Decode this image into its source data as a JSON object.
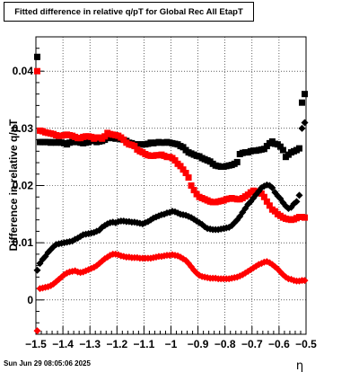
{
  "title": "Fitted difference in relative q/pT for Global Rec All EtapT",
  "footer": "Sun Jun 29 08:05:06 2025",
  "chart_data": {
    "type": "scatter",
    "title": "Fitted difference in relative q/pT for Global Rec All EtapT",
    "xlabel": "η",
    "ylabel": "Difference in relative q/pT",
    "xlim": [
      -1.5,
      -0.5
    ],
    "ylim": [
      -0.006,
      0.046
    ],
    "grid": true,
    "x_ticks": [
      "−1.5",
      "−1.4",
      "−1.3",
      "−1.2",
      "−1.1",
      "−1",
      "−0.9",
      "−0.8",
      "−0.7",
      "−0.6",
      "−0.5"
    ],
    "y_ticks": [
      "0",
      "0.01",
      "0.02",
      "0.03",
      "0.04"
    ],
    "series": [
      {
        "color": "#000000",
        "marker": "square",
        "x": [
          -1.495,
          -1.485,
          -1.475,
          -1.465,
          -1.455,
          -1.445,
          -1.435,
          -1.425,
          -1.415,
          -1.405,
          -1.395,
          -1.385,
          -1.375,
          -1.365,
          -1.355,
          -1.345,
          -1.335,
          -1.325,
          -1.315,
          -1.305,
          -1.295,
          -1.285,
          -1.275,
          -1.265,
          -1.255,
          -1.245,
          -1.235,
          -1.225,
          -1.215,
          -1.205,
          -1.195,
          -1.185,
          -1.175,
          -1.165,
          -1.155,
          -1.145,
          -1.135,
          -1.125,
          -1.115,
          -1.105,
          -1.095,
          -1.085,
          -1.075,
          -1.065,
          -1.055,
          -1.045,
          -1.035,
          -1.025,
          -1.015,
          -1.005,
          -0.995,
          -0.985,
          -0.975,
          -0.965,
          -0.955,
          -0.945,
          -0.935,
          -0.925,
          -0.915,
          -0.905,
          -0.895,
          -0.885,
          -0.875,
          -0.865,
          -0.855,
          -0.845,
          -0.835,
          -0.825,
          -0.815,
          -0.805,
          -0.795,
          -0.785,
          -0.775,
          -0.765,
          -0.755,
          -0.745,
          -0.735,
          -0.725,
          -0.715,
          -0.705,
          -0.695,
          -0.685,
          -0.675,
          -0.665,
          -0.655,
          -0.645,
          -0.635,
          -0.625,
          -0.615,
          -0.605,
          -0.595,
          -0.585,
          -0.575,
          -0.565,
          -0.555,
          -0.545,
          -0.535,
          -0.525,
          -0.515,
          -0.505
        ],
        "y": [
          0.0425,
          0.0276,
          0.0276,
          0.0276,
          0.0276,
          0.0275,
          0.0276,
          0.0275,
          0.0276,
          0.0275,
          0.0274,
          0.0272,
          0.0275,
          0.0276,
          0.0277,
          0.0276,
          0.0275,
          0.0274,
          0.0275,
          0.0276,
          0.0278,
          0.0279,
          0.0276,
          0.0277,
          0.0278,
          0.028,
          0.0283,
          0.0284,
          0.0283,
          0.0282,
          0.0283,
          0.0281,
          0.028,
          0.0278,
          0.0275,
          0.0274,
          0.0272,
          0.0272,
          0.0272,
          0.0272,
          0.0272,
          0.0273,
          0.0275,
          0.0274,
          0.0275,
          0.0276,
          0.0275,
          0.0275,
          0.0276,
          0.0275,
          0.0274,
          0.0273,
          0.0272,
          0.0269,
          0.0267,
          0.0262,
          0.0258,
          0.0256,
          0.0254,
          0.0252,
          0.0251,
          0.0248,
          0.0246,
          0.0244,
          0.0242,
          0.0238,
          0.0235,
          0.0234,
          0.0233,
          0.0233,
          0.0234,
          0.0235,
          0.0236,
          0.0238,
          0.0241,
          0.0255,
          0.0257,
          0.0258,
          0.0258,
          0.026,
          0.0261,
          0.0261,
          0.0262,
          0.0263,
          0.0264,
          0.0269,
          0.0274,
          0.0277,
          0.0273,
          0.0272,
          0.0268,
          0.0262,
          0.025,
          0.0254,
          0.0258,
          0.026,
          0.0262,
          0.0265,
          0.0345,
          0.036
        ]
      },
      {
        "color": "#ff0000",
        "marker": "square",
        "x": [
          -1.495,
          -1.485,
          -1.475,
          -1.465,
          -1.455,
          -1.445,
          -1.435,
          -1.425,
          -1.415,
          -1.405,
          -1.395,
          -1.385,
          -1.375,
          -1.365,
          -1.355,
          -1.345,
          -1.335,
          -1.325,
          -1.315,
          -1.305,
          -1.295,
          -1.285,
          -1.275,
          -1.265,
          -1.255,
          -1.245,
          -1.235,
          -1.225,
          -1.215,
          -1.205,
          -1.195,
          -1.185,
          -1.175,
          -1.165,
          -1.155,
          -1.145,
          -1.135,
          -1.125,
          -1.115,
          -1.105,
          -1.095,
          -1.085,
          -1.075,
          -1.065,
          -1.055,
          -1.045,
          -1.035,
          -1.025,
          -1.015,
          -1.005,
          -0.995,
          -0.985,
          -0.975,
          -0.965,
          -0.955,
          -0.945,
          -0.935,
          -0.925,
          -0.915,
          -0.905,
          -0.895,
          -0.885,
          -0.875,
          -0.865,
          -0.855,
          -0.845,
          -0.835,
          -0.825,
          -0.815,
          -0.805,
          -0.795,
          -0.785,
          -0.775,
          -0.765,
          -0.755,
          -0.745,
          -0.735,
          -0.725,
          -0.715,
          -0.705,
          -0.695,
          -0.685,
          -0.675,
          -0.665,
          -0.655,
          -0.645,
          -0.635,
          -0.625,
          -0.615,
          -0.605,
          -0.595,
          -0.585,
          -0.575,
          -0.565,
          -0.555,
          -0.545,
          -0.535,
          -0.525,
          -0.515,
          -0.505
        ],
        "y": [
          0.04,
          0.0296,
          0.0295,
          0.0293,
          0.0292,
          0.0291,
          0.029,
          0.0288,
          0.0287,
          0.0287,
          0.0288,
          0.0289,
          0.0288,
          0.0287,
          0.0285,
          0.0283,
          0.0283,
          0.0285,
          0.0286,
          0.0286,
          0.0285,
          0.0282,
          0.0284,
          0.0284,
          0.0282,
          0.0286,
          0.0292,
          0.029,
          0.0289,
          0.0288,
          0.0287,
          0.0284,
          0.028,
          0.0275,
          0.0272,
          0.0271,
          0.0269,
          0.0263,
          0.026,
          0.0258,
          0.0255,
          0.0253,
          0.0252,
          0.0252,
          0.0253,
          0.0253,
          0.0254,
          0.0252,
          0.025,
          0.025,
          0.0248,
          0.0244,
          0.0238,
          0.0234,
          0.0228,
          0.0222,
          0.0214,
          0.02,
          0.0192,
          0.0185,
          0.018,
          0.0178,
          0.0176,
          0.0174,
          0.0172,
          0.0171,
          0.0171,
          0.0172,
          0.0173,
          0.0174,
          0.0176,
          0.0177,
          0.0178,
          0.0177,
          0.0176,
          0.0176,
          0.0178,
          0.0181,
          0.0184,
          0.0188,
          0.0191,
          0.019,
          0.0188,
          0.0186,
          0.018,
          0.0172,
          0.0165,
          0.0158,
          0.0155,
          0.015,
          0.0147,
          0.0144,
          0.0142,
          0.0141,
          0.014,
          0.0141,
          0.0143,
          0.0145,
          0.0145,
          0.0144
        ]
      },
      {
        "color": "#000000",
        "marker": "circle",
        "x": [
          -1.495,
          -1.485,
          -1.475,
          -1.465,
          -1.455,
          -1.445,
          -1.435,
          -1.425,
          -1.415,
          -1.405,
          -1.395,
          -1.385,
          -1.375,
          -1.365,
          -1.355,
          -1.345,
          -1.335,
          -1.325,
          -1.315,
          -1.305,
          -1.295,
          -1.285,
          -1.275,
          -1.265,
          -1.255,
          -1.245,
          -1.235,
          -1.225,
          -1.215,
          -1.205,
          -1.195,
          -1.185,
          -1.175,
          -1.165,
          -1.155,
          -1.145,
          -1.135,
          -1.125,
          -1.115,
          -1.105,
          -1.095,
          -1.085,
          -1.075,
          -1.065,
          -1.055,
          -1.045,
          -1.035,
          -1.025,
          -1.015,
          -1.005,
          -0.995,
          -0.985,
          -0.975,
          -0.965,
          -0.955,
          -0.945,
          -0.935,
          -0.925,
          -0.915,
          -0.905,
          -0.895,
          -0.885,
          -0.875,
          -0.865,
          -0.855,
          -0.845,
          -0.835,
          -0.825,
          -0.815,
          -0.805,
          -0.795,
          -0.785,
          -0.775,
          -0.765,
          -0.755,
          -0.745,
          -0.735,
          -0.725,
          -0.715,
          -0.705,
          -0.695,
          -0.685,
          -0.675,
          -0.665,
          -0.655,
          -0.645,
          -0.635,
          -0.625,
          -0.615,
          -0.605,
          -0.595,
          -0.585,
          -0.575,
          -0.565,
          -0.555,
          -0.545,
          -0.535,
          -0.525,
          -0.515,
          -0.505
        ],
        "y": [
          0.0052,
          0.0064,
          0.0071,
          0.0076,
          0.0083,
          0.0088,
          0.0093,
          0.0097,
          0.0098,
          0.0099,
          0.01,
          0.0101,
          0.0102,
          0.0103,
          0.0106,
          0.0108,
          0.0111,
          0.0114,
          0.0115,
          0.0116,
          0.0117,
          0.0118,
          0.012,
          0.0122,
          0.0127,
          0.013,
          0.0133,
          0.0135,
          0.0136,
          0.0135,
          0.0137,
          0.0138,
          0.0138,
          0.0137,
          0.0137,
          0.0136,
          0.0136,
          0.0135,
          0.0134,
          0.0133,
          0.0135,
          0.0137,
          0.014,
          0.0143,
          0.0145,
          0.0147,
          0.0149,
          0.015,
          0.0152,
          0.0153,
          0.0155,
          0.0154,
          0.0152,
          0.015,
          0.0149,
          0.0148,
          0.0146,
          0.0144,
          0.0141,
          0.0138,
          0.0135,
          0.0132,
          0.0128,
          0.0125,
          0.0124,
          0.0123,
          0.0123,
          0.0123,
          0.0124,
          0.0125,
          0.0126,
          0.0127,
          0.013,
          0.0135,
          0.014,
          0.0146,
          0.0153,
          0.016,
          0.0167,
          0.0172,
          0.0178,
          0.0184,
          0.019,
          0.0196,
          0.0199,
          0.0201,
          0.02,
          0.0196,
          0.0188,
          0.0182,
          0.0177,
          0.017,
          0.0164,
          0.016,
          0.0162,
          0.0168,
          0.0172,
          0.0183,
          0.03,
          0.031
        ]
      },
      {
        "color": "#ff0000",
        "marker": "circle",
        "x": [
          -1.495,
          -1.485,
          -1.475,
          -1.465,
          -1.455,
          -1.445,
          -1.435,
          -1.425,
          -1.415,
          -1.405,
          -1.395,
          -1.385,
          -1.375,
          -1.365,
          -1.355,
          -1.345,
          -1.335,
          -1.325,
          -1.315,
          -1.305,
          -1.295,
          -1.285,
          -1.275,
          -1.265,
          -1.255,
          -1.245,
          -1.235,
          -1.225,
          -1.215,
          -1.205,
          -1.195,
          -1.185,
          -1.175,
          -1.165,
          -1.155,
          -1.145,
          -1.135,
          -1.125,
          -1.115,
          -1.105,
          -1.095,
          -1.085,
          -1.075,
          -1.065,
          -1.055,
          -1.045,
          -1.035,
          -1.025,
          -1.015,
          -1.005,
          -0.995,
          -0.985,
          -0.975,
          -0.965,
          -0.955,
          -0.945,
          -0.935,
          -0.925,
          -0.915,
          -0.905,
          -0.895,
          -0.885,
          -0.875,
          -0.865,
          -0.855,
          -0.845,
          -0.835,
          -0.825,
          -0.815,
          -0.805,
          -0.795,
          -0.785,
          -0.775,
          -0.765,
          -0.755,
          -0.745,
          -0.735,
          -0.725,
          -0.715,
          -0.705,
          -0.695,
          -0.685,
          -0.675,
          -0.665,
          -0.655,
          -0.645,
          -0.635,
          -0.625,
          -0.615,
          -0.605,
          -0.595,
          -0.585,
          -0.575,
          -0.565,
          -0.555,
          -0.545,
          -0.535,
          -0.525,
          -0.515,
          -0.505
        ],
        "y": [
          -0.0054,
          0.002,
          0.0021,
          0.0022,
          0.0023,
          0.0025,
          0.0028,
          0.0032,
          0.0036,
          0.004,
          0.0044,
          0.0047,
          0.0049,
          0.005,
          0.0051,
          0.0049,
          0.0048,
          0.0049,
          0.0051,
          0.0053,
          0.0055,
          0.0057,
          0.006,
          0.0064,
          0.0068,
          0.0072,
          0.0075,
          0.0078,
          0.008,
          0.008,
          0.0079,
          0.0077,
          0.0076,
          0.0075,
          0.0075,
          0.0074,
          0.0074,
          0.0074,
          0.0073,
          0.0073,
          0.0073,
          0.0073,
          0.0073,
          0.0074,
          0.0075,
          0.0076,
          0.0076,
          0.0077,
          0.0078,
          0.0078,
          0.0079,
          0.0078,
          0.0077,
          0.0075,
          0.0072,
          0.0069,
          0.0064,
          0.0058,
          0.0052,
          0.0047,
          0.0043,
          0.0041,
          0.004,
          0.0039,
          0.0038,
          0.0038,
          0.0038,
          0.0037,
          0.0037,
          0.0037,
          0.0037,
          0.0037,
          0.0038,
          0.0039,
          0.004,
          0.0042,
          0.0044,
          0.0047,
          0.005,
          0.0053,
          0.0056,
          0.0059,
          0.0062,
          0.0064,
          0.0066,
          0.0067,
          0.0065,
          0.0062,
          0.0058,
          0.0054,
          0.0049,
          0.0044,
          0.004,
          0.0037,
          0.0036,
          0.0034,
          0.0033,
          0.0033,
          0.0034,
          0.0034
        ]
      }
    ]
  }
}
